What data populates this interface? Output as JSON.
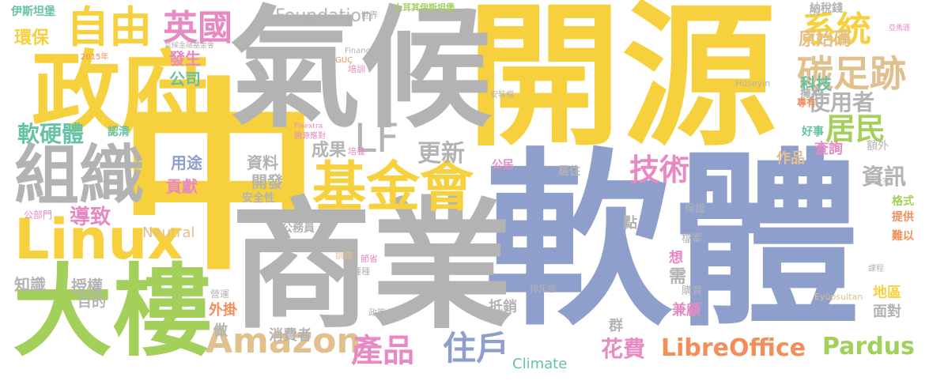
{
  "palette": {
    "yellow": "#f7d13d",
    "blue": "#8f9fcc",
    "gray": "#b3b3b3",
    "green": "#a3d05a",
    "orange": "#f28e5a",
    "tan": "#e2c08d",
    "teal": "#66c2a5",
    "pink": "#e78ac3"
  },
  "words": [
    {
      "text": "中",
      "color": "yellow"
    },
    {
      "text": "軟體",
      "color": "blue"
    },
    {
      "text": "開源",
      "color": "yellow"
    },
    {
      "text": "氣候",
      "color": "gray"
    },
    {
      "text": "商業",
      "color": "gray"
    },
    {
      "text": "大樓",
      "color": "green"
    },
    {
      "text": "政府",
      "color": "yellow"
    },
    {
      "text": "組織",
      "color": "gray"
    },
    {
      "text": "Linux",
      "color": "yellow"
    },
    {
      "text": "基金會",
      "color": "yellow"
    },
    {
      "text": "自由",
      "color": "yellow"
    },
    {
      "text": "英國",
      "color": "pink"
    },
    {
      "text": "系統",
      "color": "yellow"
    },
    {
      "text": "碳足跡",
      "color": "tan"
    },
    {
      "text": "LF",
      "color": "gray"
    },
    {
      "text": "Amazon",
      "color": "tan"
    },
    {
      "text": "產品",
      "color": "pink"
    },
    {
      "text": "住戶",
      "color": "blue"
    },
    {
      "text": "技術",
      "color": "pink"
    },
    {
      "text": "居民",
      "color": "green"
    },
    {
      "text": "資訊",
      "color": "gray"
    },
    {
      "text": "軟硬體",
      "color": "teal"
    },
    {
      "text": "導致",
      "color": "pink"
    },
    {
      "text": "更新",
      "color": "gray"
    },
    {
      "text": "使用者",
      "color": "gray"
    },
    {
      "text": "LibreOffice",
      "color": "orange"
    },
    {
      "text": "Pardus",
      "color": "green"
    },
    {
      "text": "花費",
      "color": "pink"
    },
    {
      "text": "Foundation",
      "color": "gray"
    },
    {
      "text": "原始碼",
      "color": "tan"
    },
    {
      "text": "發生",
      "color": "pink"
    },
    {
      "text": "公司",
      "color": "teal"
    },
    {
      "text": "科技",
      "color": "teal"
    },
    {
      "text": "成果",
      "color": "gray"
    },
    {
      "text": "資料",
      "color": "gray"
    },
    {
      "text": "開發",
      "color": "gray"
    },
    {
      "text": "用途",
      "color": "blue"
    },
    {
      "text": "貢獻",
      "color": "pink"
    },
    {
      "text": "安全性",
      "color": "gray"
    },
    {
      "text": "環保",
      "color": "yellow"
    },
    {
      "text": "知識",
      "color": "gray"
    },
    {
      "text": "授權",
      "color": "gray"
    },
    {
      "text": "目的",
      "color": "gray"
    },
    {
      "text": "Neutral",
      "color": "tan"
    },
    {
      "text": "Climate",
      "color": "teal"
    },
    {
      "text": "消費者",
      "color": "gray"
    },
    {
      "text": "公務員",
      "color": "gray"
    },
    {
      "text": "外掛",
      "color": "orange"
    },
    {
      "text": "抵銷",
      "color": "gray"
    },
    {
      "text": "兼顧",
      "color": "pink"
    },
    {
      "text": "需",
      "color": "gray"
    },
    {
      "text": "作品",
      "color": "tan"
    },
    {
      "text": "查詢",
      "color": "pink"
    },
    {
      "text": "面對",
      "color": "gray"
    },
    {
      "text": "地區",
      "color": "yellow"
    },
    {
      "text": "納稅錢",
      "color": "gray"
    },
    {
      "text": "公民",
      "color": "pink"
    },
    {
      "text": "居住",
      "color": "gray"
    },
    {
      "text": "擁抱",
      "color": "gray"
    },
    {
      "text": "認清",
      "color": "teal"
    },
    {
      "text": "做",
      "color": "gray"
    },
    {
      "text": "群",
      "color": "gray"
    },
    {
      "text": "點",
      "color": "gray"
    },
    {
      "text": "想",
      "color": "pink"
    },
    {
      "text": "伊斯坦堡",
      "color": "teal"
    },
    {
      "text": "土耳其伊斯坦堡",
      "color": "green"
    },
    {
      "text": "世界",
      "color": "gray"
    },
    {
      "text": "2015年",
      "color": "orange"
    },
    {
      "text": "氣候金融基金會",
      "color": "gray"
    },
    {
      "text": "Finance",
      "color": "gray"
    },
    {
      "text": "Finextra",
      "color": "pink"
    },
    {
      "text": "開源應對",
      "color": "pink"
    },
    {
      "text": "安裝檔",
      "color": "gray"
    },
    {
      "text": "專有",
      "color": "orange"
    },
    {
      "text": "好事",
      "color": "teal"
    },
    {
      "text": "額外",
      "color": "gray"
    },
    {
      "text": "格式",
      "color": "green"
    },
    {
      "text": "提供",
      "color": "orange"
    },
    {
      "text": "難以",
      "color": "orange"
    },
    {
      "text": "Hüseyin",
      "color": "gray"
    },
    {
      "text": "Eyüpsultan",
      "color": "tan"
    },
    {
      "text": "GUÇ",
      "color": "orange"
    },
    {
      "text": "保證",
      "color": "gray"
    },
    {
      "text": "檔案",
      "color": "gray"
    },
    {
      "text": "購買",
      "color": "gray"
    },
    {
      "text": "營運",
      "color": "gray"
    },
    {
      "text": "公部門",
      "color": "pink"
    },
    {
      "text": "培訓",
      "color": "pink"
    },
    {
      "text": "培養",
      "color": "pink"
    },
    {
      "text": "節省",
      "color": "pink"
    },
    {
      "text": "種種",
      "color": "gray"
    },
    {
      "text": "政策",
      "color": "gray"
    },
    {
      "text": "訓練",
      "color": "tan"
    },
    {
      "text": "排斥感",
      "color": "gray"
    },
    {
      "text": "課程",
      "color": "gray"
    },
    {
      "text": "辦公室",
      "color": "gray"
    },
    {
      "text": "OS",
      "color": "gray"
    },
    {
      "text": "亞馬遜",
      "color": "pink"
    }
  ]
}
